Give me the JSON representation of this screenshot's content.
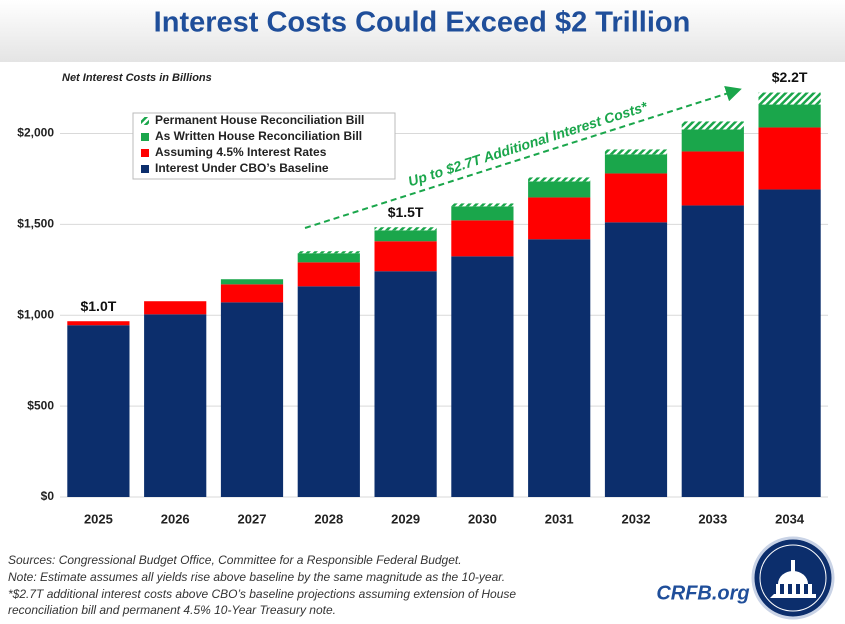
{
  "chart_data": {
    "type": "stacked-bar",
    "title": "Interest Costs Could Exceed $2 Trillion",
    "subtitle": "Net Interest Costs in Billions",
    "arrow_annotation": "Up to $2.7T Additional Interest Costs*",
    "categories": [
      "2025",
      "2026",
      "2027",
      "2028",
      "2029",
      "2030",
      "2031",
      "2032",
      "2033",
      "2034"
    ],
    "series": [
      {
        "name": "Interest Under CBO’s Baseline",
        "color": "#0c2e6c",
        "values": [
          945,
          1005,
          1071,
          1159,
          1242,
          1324,
          1418,
          1511,
          1604,
          1692
        ]
      },
      {
        "name": "Assuming 4.5% Interest Rates",
        "color": "#ff0000",
        "values": [
          22,
          72,
          99,
          132,
          165,
          198,
          230,
          269,
          297,
          341
        ]
      },
      {
        "name": "As Written House Reconciliation Bill",
        "color": "#1aa64b",
        "values": [
          0,
          0,
          28,
          50,
          60,
          77,
          88,
          105,
          121,
          126
        ]
      },
      {
        "name": "Permanent House Reconciliation Bill",
        "color": "#1aa64b",
        "pattern": "hatch",
        "values": [
          0,
          0,
          0,
          11,
          17,
          16,
          22,
          27,
          44,
          66
        ]
      }
    ],
    "total_labels": [
      {
        "category": "2025",
        "label": "$1.0T"
      },
      {
        "category": "2029",
        "label": "$1.5T"
      },
      {
        "category": "2034",
        "label": "$2.2T"
      }
    ],
    "ylim": [
      0,
      2250
    ],
    "yticks": [
      {
        "value": 0,
        "label": "$0"
      },
      {
        "value": 500,
        "label": "$500"
      },
      {
        "value": 1000,
        "label": "$1,000"
      },
      {
        "value": 1500,
        "label": "$1,500"
      },
      {
        "value": 2000,
        "label": "$2,000"
      }
    ],
    "grid": true,
    "legend_position": "upper-left",
    "notes": [
      "Sources: Congressional Budget Office, Committee for a Responsible Federal Budget.",
      "Note: Estimate assumes all yields rise above baseline by the same magnitude as the 10-year.",
      "*$2.7T additional interest costs above CBO’s baseline projections assuming extension of House",
      "reconciliation bill and permanent 4.5% 10-Year Treasury note."
    ],
    "brand": "CRFB.org"
  }
}
